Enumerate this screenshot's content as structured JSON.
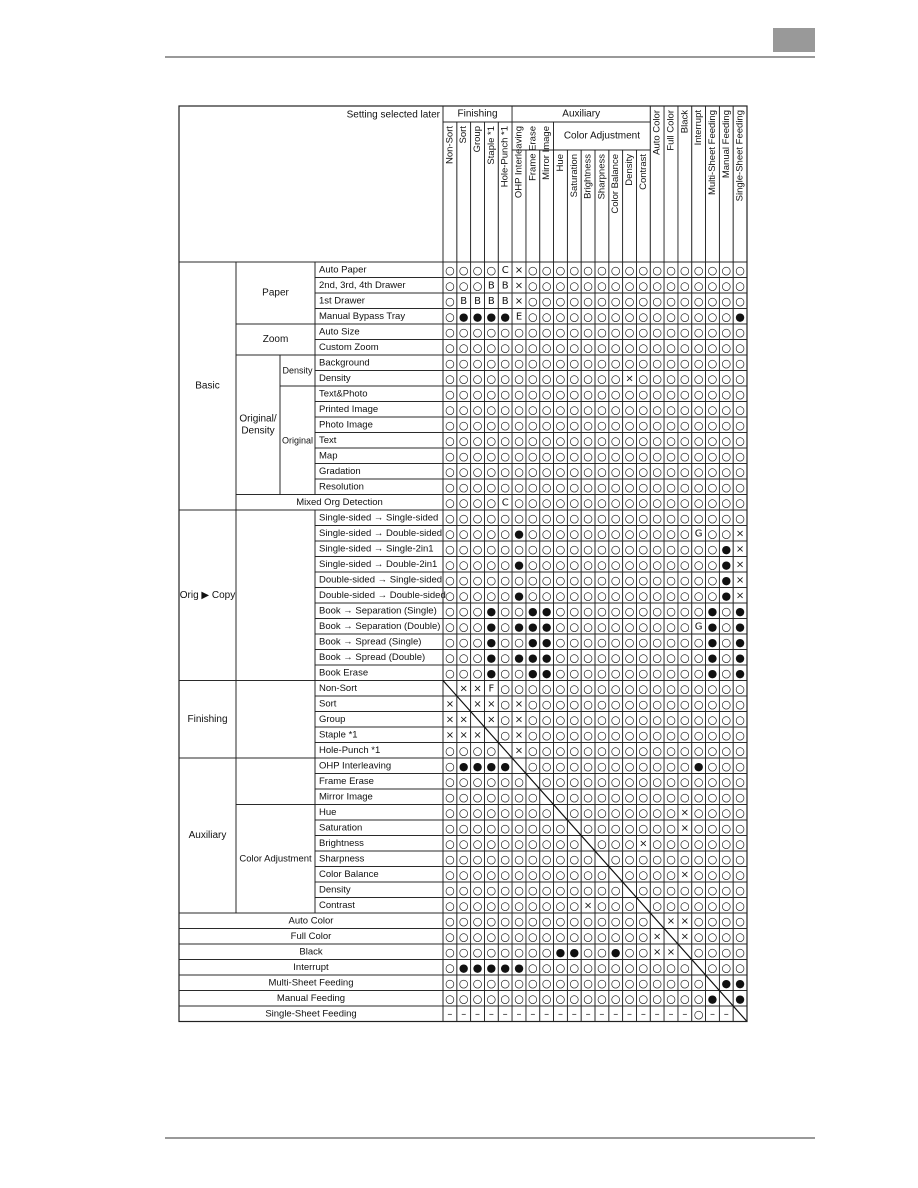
{
  "header_label": "Setting selected later",
  "column_groups": {
    "finishing": "Finishing",
    "auxiliary": "Auxiliary",
    "color_adjustment": "Color Adjustment"
  },
  "columns": [
    "Non-Sort",
    "Sort",
    "Group",
    "Staple *1",
    "Hole-Punch *1",
    "OHP Interleaving",
    "Frame Erase",
    "Mirror Image",
    "Hue",
    "Saturation",
    "Brightness",
    "Sharpness",
    "Color Balance",
    "Density",
    "Contrast",
    "Auto Color",
    "Full Color",
    "Black",
    "Interrupt",
    "Multi-Sheet Feeding",
    "Manual Feeding",
    "Single-Sheet Feeding"
  ],
  "left_labels": {
    "basic": "Basic",
    "paper": "Paper",
    "zoom": "Zoom",
    "original_density": [
      "Original/",
      "Density"
    ],
    "density": "Density",
    "original": "Original",
    "orig_copy": "Orig ▶ Copy",
    "finishing": "Finishing",
    "auxiliary": "Auxiliary",
    "color_adjustment": "Color Adjustment"
  },
  "rows": [
    {
      "label": "Auto Paper",
      "cells": [
        "○",
        "○",
        "○",
        "○",
        "C",
        "×",
        "○",
        "○",
        "○",
        "○",
        "○",
        "○",
        "○",
        "○",
        "○",
        "○",
        "○",
        "○",
        "○",
        "○",
        "○",
        "○"
      ]
    },
    {
      "label": "2nd, 3rd, 4th Drawer",
      "cells": [
        "○",
        "○",
        "○",
        "B",
        "B",
        "×",
        "○",
        "○",
        "○",
        "○",
        "○",
        "○",
        "○",
        "○",
        "○",
        "○",
        "○",
        "○",
        "○",
        "○",
        "○",
        "○"
      ]
    },
    {
      "label": "1st Drawer",
      "cells": [
        "○",
        "B",
        "B",
        "B",
        "B",
        "×",
        "○",
        "○",
        "○",
        "○",
        "○",
        "○",
        "○",
        "○",
        "○",
        "○",
        "○",
        "○",
        "○",
        "○",
        "○",
        "○"
      ]
    },
    {
      "label": "Manual Bypass Tray",
      "cells": [
        "○",
        "●",
        "●",
        "●",
        "●",
        "E",
        "○",
        "○",
        "○",
        "○",
        "○",
        "○",
        "○",
        "○",
        "○",
        "○",
        "○",
        "○",
        "○",
        "○",
        "○",
        "●"
      ]
    },
    {
      "label": "Auto Size",
      "cells": [
        "○",
        "○",
        "○",
        "○",
        "○",
        "○",
        "○",
        "○",
        "○",
        "○",
        "○",
        "○",
        "○",
        "○",
        "○",
        "○",
        "○",
        "○",
        "○",
        "○",
        "○",
        "○"
      ]
    },
    {
      "label": "Custom Zoom",
      "cells": [
        "○",
        "○",
        "○",
        "○",
        "○",
        "○",
        "○",
        "○",
        "○",
        "○",
        "○",
        "○",
        "○",
        "○",
        "○",
        "○",
        "○",
        "○",
        "○",
        "○",
        "○",
        "○"
      ]
    },
    {
      "label": "Background",
      "cells": [
        "○",
        "○",
        "○",
        "○",
        "○",
        "○",
        "○",
        "○",
        "○",
        "○",
        "○",
        "○",
        "○",
        "○",
        "○",
        "○",
        "○",
        "○",
        "○",
        "○",
        "○",
        "○"
      ]
    },
    {
      "label": "Density",
      "cells": [
        "○",
        "○",
        "○",
        "○",
        "○",
        "○",
        "○",
        "○",
        "○",
        "○",
        "○",
        "○",
        "○",
        "×",
        "○",
        "○",
        "○",
        "○",
        "○",
        "○",
        "○",
        "○"
      ]
    },
    {
      "label": "Text&Photo",
      "cells": [
        "○",
        "○",
        "○",
        "○",
        "○",
        "○",
        "○",
        "○",
        "○",
        "○",
        "○",
        "○",
        "○",
        "○",
        "○",
        "○",
        "○",
        "○",
        "○",
        "○",
        "○",
        "○"
      ]
    },
    {
      "label": "Printed Image",
      "cells": [
        "○",
        "○",
        "○",
        "○",
        "○",
        "○",
        "○",
        "○",
        "○",
        "○",
        "○",
        "○",
        "○",
        "○",
        "○",
        "○",
        "○",
        "○",
        "○",
        "○",
        "○",
        "○"
      ]
    },
    {
      "label": "Photo Image",
      "cells": [
        "○",
        "○",
        "○",
        "○",
        "○",
        "○",
        "○",
        "○",
        "○",
        "○",
        "○",
        "○",
        "○",
        "○",
        "○",
        "○",
        "○",
        "○",
        "○",
        "○",
        "○",
        "○"
      ]
    },
    {
      "label": "Text",
      "cells": [
        "○",
        "○",
        "○",
        "○",
        "○",
        "○",
        "○",
        "○",
        "○",
        "○",
        "○",
        "○",
        "○",
        "○",
        "○",
        "○",
        "○",
        "○",
        "○",
        "○",
        "○",
        "○"
      ]
    },
    {
      "label": "Map",
      "cells": [
        "○",
        "○",
        "○",
        "○",
        "○",
        "○",
        "○",
        "○",
        "○",
        "○",
        "○",
        "○",
        "○",
        "○",
        "○",
        "○",
        "○",
        "○",
        "○",
        "○",
        "○",
        "○"
      ]
    },
    {
      "label": "Gradation",
      "cells": [
        "○",
        "○",
        "○",
        "○",
        "○",
        "○",
        "○",
        "○",
        "○",
        "○",
        "○",
        "○",
        "○",
        "○",
        "○",
        "○",
        "○",
        "○",
        "○",
        "○",
        "○",
        "○"
      ]
    },
    {
      "label": "Resolution",
      "cells": [
        "○",
        "○",
        "○",
        "○",
        "○",
        "○",
        "○",
        "○",
        "○",
        "○",
        "○",
        "○",
        "○",
        "○",
        "○",
        "○",
        "○",
        "○",
        "○",
        "○",
        "○",
        "○"
      ]
    },
    {
      "label": "Mixed Org Detection",
      "cells": [
        "○",
        "○",
        "○",
        "○",
        "C",
        "○",
        "○",
        "○",
        "○",
        "○",
        "○",
        "○",
        "○",
        "○",
        "○",
        "○",
        "○",
        "○",
        "○",
        "○",
        "○",
        "○"
      ]
    },
    {
      "label": "Single-sided → Single-sided",
      "cells": [
        "○",
        "○",
        "○",
        "○",
        "○",
        "○",
        "○",
        "○",
        "○",
        "○",
        "○",
        "○",
        "○",
        "○",
        "○",
        "○",
        "○",
        "○",
        "○",
        "○",
        "○",
        "○"
      ]
    },
    {
      "label": "Single-sided → Double-sided",
      "cells": [
        "○",
        "○",
        "○",
        "○",
        "○",
        "●",
        "○",
        "○",
        "○",
        "○",
        "○",
        "○",
        "○",
        "○",
        "○",
        "○",
        "○",
        "○",
        "G",
        "○",
        "○",
        "×"
      ]
    },
    {
      "label": "Single-sided → Single-2in1",
      "cells": [
        "○",
        "○",
        "○",
        "○",
        "○",
        "○",
        "○",
        "○",
        "○",
        "○",
        "○",
        "○",
        "○",
        "○",
        "○",
        "○",
        "○",
        "○",
        "○",
        "○",
        "●",
        "×"
      ]
    },
    {
      "label": "Single-sided → Double-2in1",
      "cells": [
        "○",
        "○",
        "○",
        "○",
        "○",
        "●",
        "○",
        "○",
        "○",
        "○",
        "○",
        "○",
        "○",
        "○",
        "○",
        "○",
        "○",
        "○",
        "○",
        "○",
        "●",
        "×"
      ]
    },
    {
      "label": "Double-sided → Single-sided",
      "cells": [
        "○",
        "○",
        "○",
        "○",
        "○",
        "○",
        "○",
        "○",
        "○",
        "○",
        "○",
        "○",
        "○",
        "○",
        "○",
        "○",
        "○",
        "○",
        "○",
        "○",
        "●",
        "×"
      ]
    },
    {
      "label": "Double-sided → Double-sided",
      "cells": [
        "○",
        "○",
        "○",
        "○",
        "○",
        "●",
        "○",
        "○",
        "○",
        "○",
        "○",
        "○",
        "○",
        "○",
        "○",
        "○",
        "○",
        "○",
        "○",
        "○",
        "●",
        "×"
      ]
    },
    {
      "label": "Book → Separation (Single)",
      "cells": [
        "○",
        "○",
        "○",
        "●",
        "○",
        "○",
        "●",
        "●",
        "○",
        "○",
        "○",
        "○",
        "○",
        "○",
        "○",
        "○",
        "○",
        "○",
        "○",
        "●",
        "○",
        "●"
      ]
    },
    {
      "label": "Book → Separation (Double)",
      "cells": [
        "○",
        "○",
        "○",
        "●",
        "○",
        "●",
        "●",
        "●",
        "○",
        "○",
        "○",
        "○",
        "○",
        "○",
        "○",
        "○",
        "○",
        "○",
        "G",
        "●",
        "○",
        "●"
      ]
    },
    {
      "label": "Book → Spread (Single)",
      "cells": [
        "○",
        "○",
        "○",
        "●",
        "○",
        "○",
        "●",
        "●",
        "○",
        "○",
        "○",
        "○",
        "○",
        "○",
        "○",
        "○",
        "○",
        "○",
        "○",
        "●",
        "○",
        "●"
      ]
    },
    {
      "label": "Book → Spread (Double)",
      "cells": [
        "○",
        "○",
        "○",
        "●",
        "○",
        "●",
        "●",
        "●",
        "○",
        "○",
        "○",
        "○",
        "○",
        "○",
        "○",
        "○",
        "○",
        "○",
        "○",
        "●",
        "○",
        "●"
      ]
    },
    {
      "label": "Book Erase",
      "cells": [
        "○",
        "○",
        "○",
        "●",
        "○",
        "○",
        "●",
        "●",
        "○",
        "○",
        "○",
        "○",
        "○",
        "○",
        "○",
        "○",
        "○",
        "○",
        "○",
        "●",
        "○",
        "●"
      ]
    },
    {
      "label": "Non-Sort",
      "cells": [
        null,
        "×",
        "×",
        "F",
        "○",
        "○",
        "○",
        "○",
        "○",
        "○",
        "○",
        "○",
        "○",
        "○",
        "○",
        "○",
        "○",
        "○",
        "○",
        "○",
        "○",
        "○"
      ]
    },
    {
      "label": "Sort",
      "cells": [
        "×",
        null,
        "×",
        "×",
        "○",
        "×",
        "○",
        "○",
        "○",
        "○",
        "○",
        "○",
        "○",
        "○",
        "○",
        "○",
        "○",
        "○",
        "○",
        "○",
        "○",
        "○"
      ]
    },
    {
      "label": "Group",
      "cells": [
        "×",
        "×",
        null,
        "×",
        "○",
        "×",
        "○",
        "○",
        "○",
        "○",
        "○",
        "○",
        "○",
        "○",
        "○",
        "○",
        "○",
        "○",
        "○",
        "○",
        "○",
        "○"
      ]
    },
    {
      "label": "Staple *1",
      "cells": [
        "×",
        "×",
        "×",
        null,
        "○",
        "×",
        "○",
        "○",
        "○",
        "○",
        "○",
        "○",
        "○",
        "○",
        "○",
        "○",
        "○",
        "○",
        "○",
        "○",
        "○",
        "○"
      ]
    },
    {
      "label": "Hole-Punch *1",
      "cells": [
        "○",
        "○",
        "○",
        "○",
        null,
        "×",
        "○",
        "○",
        "○",
        "○",
        "○",
        "○",
        "○",
        "○",
        "○",
        "○",
        "○",
        "○",
        "○",
        "○",
        "○",
        "○"
      ]
    },
    {
      "label": "OHP Interleaving",
      "cells": [
        "○",
        "●",
        "●",
        "●",
        "●",
        null,
        "○",
        "○",
        "○",
        "○",
        "○",
        "○",
        "○",
        "○",
        "○",
        "○",
        "○",
        "○",
        "●",
        "○",
        "○",
        "○"
      ]
    },
    {
      "label": "Frame Erase",
      "cells": [
        "○",
        "○",
        "○",
        "○",
        "○",
        "○",
        null,
        "○",
        "○",
        "○",
        "○",
        "○",
        "○",
        "○",
        "○",
        "○",
        "○",
        "○",
        "○",
        "○",
        "○",
        "○"
      ]
    },
    {
      "label": "Mirror Image",
      "cells": [
        "○",
        "○",
        "○",
        "○",
        "○",
        "○",
        "○",
        null,
        "○",
        "○",
        "○",
        "○",
        "○",
        "○",
        "○",
        "○",
        "○",
        "○",
        "○",
        "○",
        "○",
        "○"
      ]
    },
    {
      "label": "Hue",
      "cells": [
        "○",
        "○",
        "○",
        "○",
        "○",
        "○",
        "○",
        "○",
        null,
        "○",
        "○",
        "○",
        "○",
        "○",
        "○",
        "○",
        "○",
        "×",
        "○",
        "○",
        "○",
        "○"
      ]
    },
    {
      "label": "Saturation",
      "cells": [
        "○",
        "○",
        "○",
        "○",
        "○",
        "○",
        "○",
        "○",
        "○",
        null,
        "○",
        "○",
        "○",
        "○",
        "○",
        "○",
        "○",
        "×",
        "○",
        "○",
        "○",
        "○"
      ]
    },
    {
      "label": "Brightness",
      "cells": [
        "○",
        "○",
        "○",
        "○",
        "○",
        "○",
        "○",
        "○",
        "○",
        "○",
        null,
        "○",
        "○",
        "○",
        "×",
        "○",
        "○",
        "○",
        "○",
        "○",
        "○",
        "○"
      ]
    },
    {
      "label": "Sharpness",
      "cells": [
        "○",
        "○",
        "○",
        "○",
        "○",
        "○",
        "○",
        "○",
        "○",
        "○",
        "○",
        null,
        "○",
        "○",
        "○",
        "○",
        "○",
        "○",
        "○",
        "○",
        "○",
        "○"
      ]
    },
    {
      "label": "Color Balance",
      "cells": [
        "○",
        "○",
        "○",
        "○",
        "○",
        "○",
        "○",
        "○",
        "○",
        "○",
        "○",
        "○",
        null,
        "○",
        "○",
        "○",
        "○",
        "×",
        "○",
        "○",
        "○",
        "○"
      ]
    },
    {
      "label": "Density",
      "cells": [
        "○",
        "○",
        "○",
        "○",
        "○",
        "○",
        "○",
        "○",
        "○",
        "○",
        "○",
        "○",
        "○",
        null,
        "○",
        "○",
        "○",
        "○",
        "○",
        "○",
        "○",
        "○"
      ]
    },
    {
      "label": "Contrast",
      "cells": [
        "○",
        "○",
        "○",
        "○",
        "○",
        "○",
        "○",
        "○",
        "○",
        "○",
        "×",
        "○",
        "○",
        "○",
        null,
        "○",
        "○",
        "○",
        "○",
        "○",
        "○",
        "○"
      ]
    },
    {
      "label": "Auto Color",
      "cells": [
        "○",
        "○",
        "○",
        "○",
        "○",
        "○",
        "○",
        "○",
        "○",
        "○",
        "○",
        "○",
        "○",
        "○",
        "○",
        null,
        "×",
        "×",
        "○",
        "○",
        "○",
        "○"
      ]
    },
    {
      "label": "Full Color",
      "cells": [
        "○",
        "○",
        "○",
        "○",
        "○",
        "○",
        "○",
        "○",
        "○",
        "○",
        "○",
        "○",
        "○",
        "○",
        "○",
        "×",
        null,
        "×",
        "○",
        "○",
        "○",
        "○"
      ]
    },
    {
      "label": "Black",
      "cells": [
        "○",
        "○",
        "○",
        "○",
        "○",
        "○",
        "○",
        "○",
        "●",
        "●",
        "○",
        "○",
        "●",
        "○",
        "○",
        "×",
        "×",
        null,
        "○",
        "○",
        "○",
        "○"
      ]
    },
    {
      "label": "Interrupt",
      "cells": [
        "○",
        "●",
        "●",
        "●",
        "●",
        "●",
        "○",
        "○",
        "○",
        "○",
        "○",
        "○",
        "○",
        "○",
        "○",
        "○",
        "○",
        "○",
        null,
        "○",
        "○",
        "○"
      ]
    },
    {
      "label": "Multi-Sheet Feeding",
      "cells": [
        "○",
        "○",
        "○",
        "○",
        "○",
        "○",
        "○",
        "○",
        "○",
        "○",
        "○",
        "○",
        "○",
        "○",
        "○",
        "○",
        "○",
        "○",
        "○",
        null,
        "●",
        "●"
      ]
    },
    {
      "label": "Manual Feeding",
      "cells": [
        "○",
        "○",
        "○",
        "○",
        "○",
        "○",
        "○",
        "○",
        "○",
        "○",
        "○",
        "○",
        "○",
        "○",
        "○",
        "○",
        "○",
        "○",
        "○",
        "●",
        null,
        "●"
      ]
    },
    {
      "label": "Single-Sheet Feeding",
      "cells": [
        "–",
        "–",
        "–",
        "–",
        "–",
        "–",
        "–",
        "–",
        "–",
        "–",
        "–",
        "–",
        "–",
        "–",
        "–",
        "–",
        "–",
        "–",
        "○",
        "–",
        "–",
        null
      ]
    }
  ]
}
